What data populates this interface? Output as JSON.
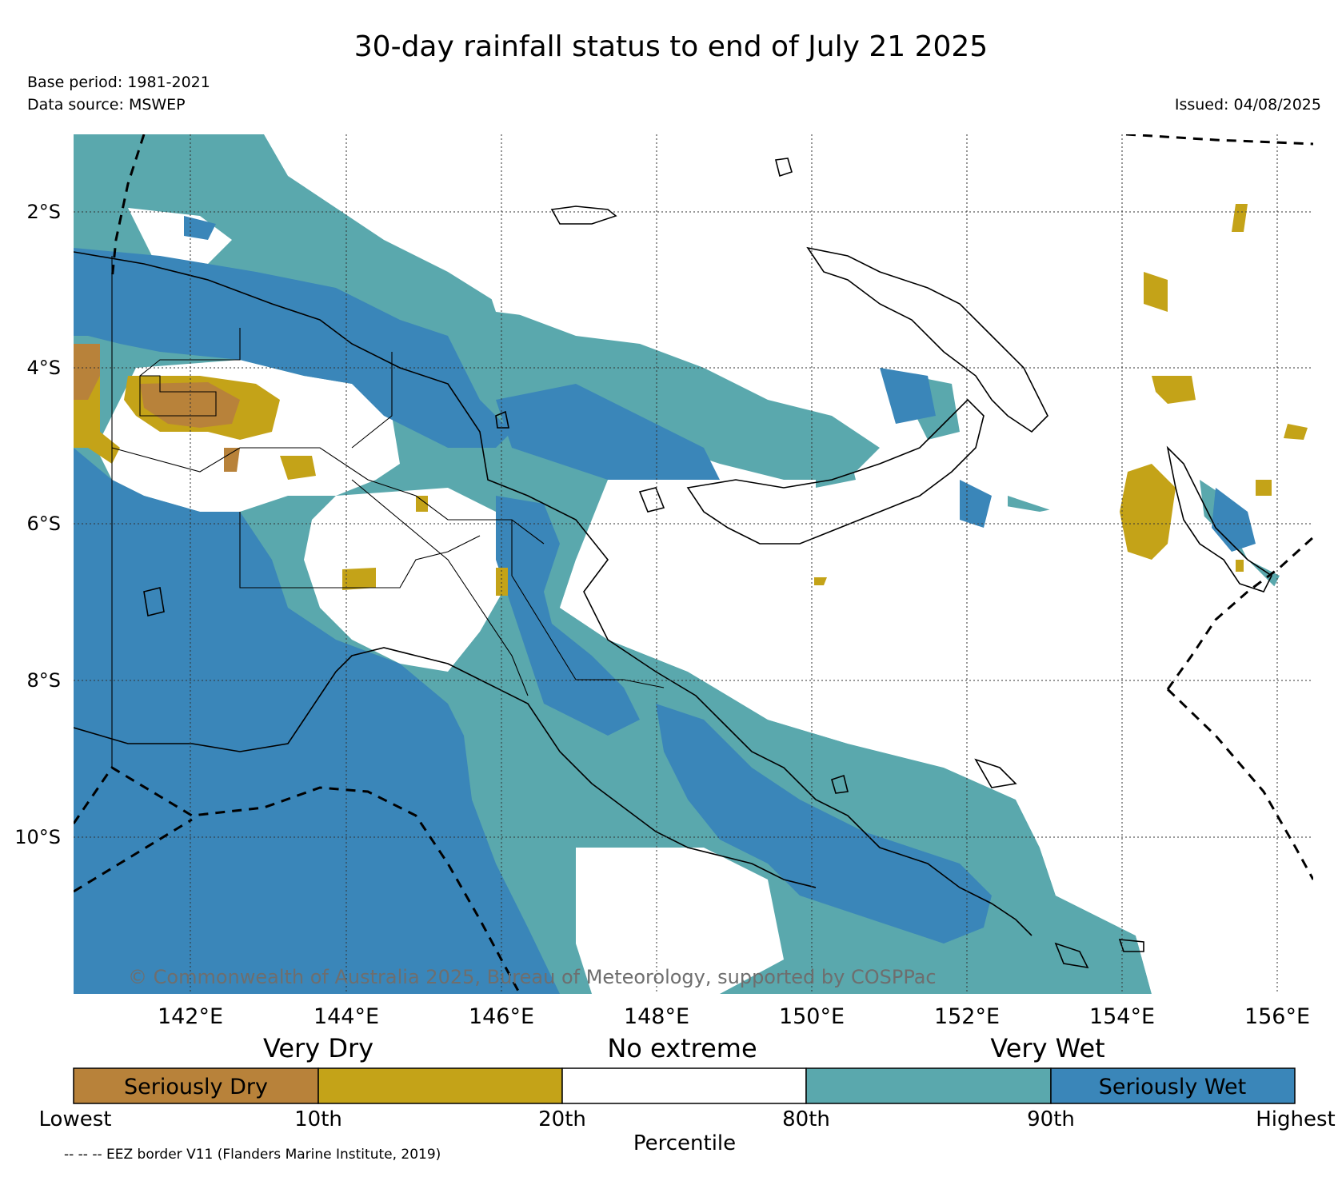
{
  "title": "30-day rainfall status to end of July 21 2025",
  "base_period": "Base period: 1981-2021",
  "data_source": "Data source: MSWEP",
  "issued": "Issued: 04/08/2025",
  "copyright": "© Commonwealth of Australia 2025, Bureau of Meteorology, supported by COSPPac",
  "lat_labels": [
    "2°S",
    "4°S",
    "6°S",
    "8°S",
    "10°S"
  ],
  "lon_labels": [
    "142°E",
    "144°E",
    "146°E",
    "148°E",
    "150°E",
    "152°E",
    "154°E",
    "156°E"
  ],
  "categories": [
    "Very Dry",
    "No extreme",
    "Very Wet"
  ],
  "legend": {
    "bins": [
      {
        "label": "Seriously Dry",
        "color": "#b8823a"
      },
      {
        "label": "",
        "color": "#c4a318"
      },
      {
        "label": "",
        "color": "#ffffff"
      },
      {
        "label": "",
        "color": "#5aa8ad"
      },
      {
        "label": "Seriously Wet",
        "color": "#3a86b9"
      }
    ],
    "percentile_ticks": [
      "Lowest",
      "10th",
      "20th",
      "80th",
      "90th",
      "Highest"
    ],
    "axis_label": "Percentile"
  },
  "footer": "-- -- -- EEZ border V11 (Flanders Marine Institute, 2019)"
}
